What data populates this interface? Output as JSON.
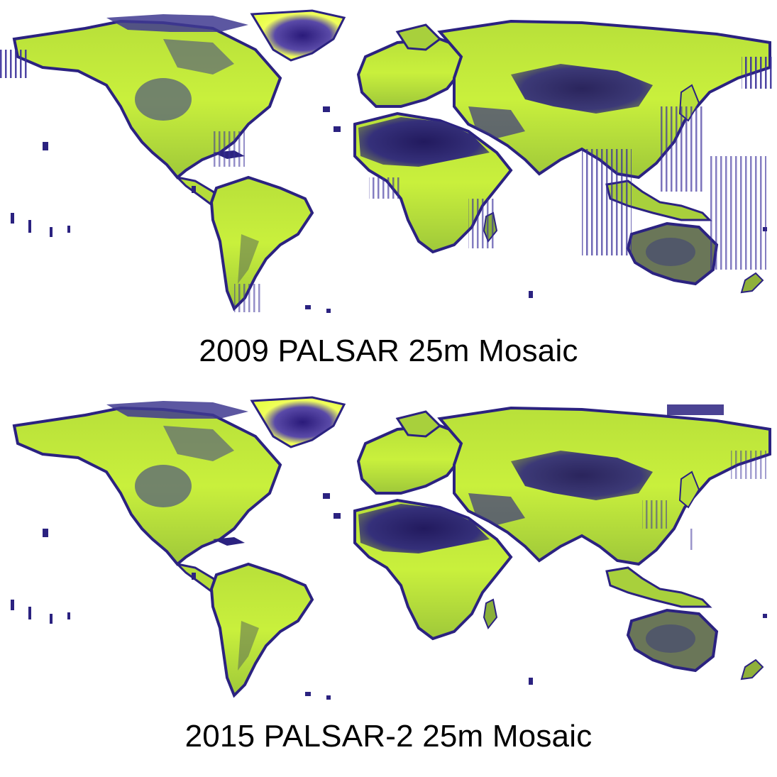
{
  "figure": {
    "colors": {
      "background": "#ffffff",
      "low_backscatter": "#2b2280",
      "mid_backscatter": "#5a5c78",
      "high_backscatter": "#c9f03c",
      "highlight": "#e9ff4a",
      "edge_streaks": "#3a2f9a"
    },
    "panels": [
      {
        "caption": "2009 PALSAR 25m Mosaic",
        "map_icon": "world-map-icon"
      },
      {
        "caption": "2015 PALSAR-2 25m Mosaic",
        "map_icon": "world-map-icon"
      }
    ]
  }
}
